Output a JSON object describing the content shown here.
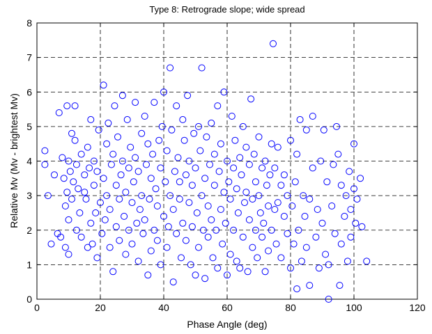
{
  "chart_data": {
    "type": "scatter",
    "title": "Type 8:  Retrograde slope; wide spread",
    "xlabel": "Phase Angle (deg)",
    "ylabel": "Relative Mv (Mv - brightest Mv)",
    "xlim": [
      0,
      120
    ],
    "ylim": [
      0,
      8
    ],
    "xticks": [
      0,
      20,
      40,
      60,
      80,
      100,
      120
    ],
    "yticks": [
      0,
      1,
      2,
      3,
      4,
      5,
      6,
      7,
      8
    ],
    "grid": true,
    "marker": "open-circle",
    "color": "#0000ff",
    "points": [
      [
        2.5,
        4.3
      ],
      [
        2.5,
        3.9
      ],
      [
        3.5,
        3.0
      ],
      [
        4.5,
        1.6
      ],
      [
        5.5,
        3.6
      ],
      [
        6.5,
        1.9
      ],
      [
        7.0,
        5.4
      ],
      [
        7.5,
        1.8
      ],
      [
        8.0,
        4.1
      ],
      [
        8.5,
        3.5
      ],
      [
        9.0,
        1.5
      ],
      [
        9.0,
        2.7
      ],
      [
        9.5,
        3.1
      ],
      [
        9.5,
        5.6
      ],
      [
        10.0,
        2.3
      ],
      [
        10.0,
        4.0
      ],
      [
        10.0,
        1.3
      ],
      [
        10.5,
        3.7
      ],
      [
        11.0,
        4.8
      ],
      [
        11.0,
        2.9
      ],
      [
        11.5,
        3.4
      ],
      [
        12.0,
        4.6
      ],
      [
        12.0,
        5.6
      ],
      [
        12.5,
        3.9
      ],
      [
        12.5,
        2.0
      ],
      [
        13.0,
        3.2
      ],
      [
        13.5,
        2.5
      ],
      [
        14.0,
        4.2
      ],
      [
        14.0,
        1.8
      ],
      [
        15.0,
        3.6
      ],
      [
        15.0,
        3.1
      ],
      [
        15.5,
        2.9
      ],
      [
        16.0,
        4.4
      ],
      [
        16.0,
        1.5
      ],
      [
        16.5,
        3.8
      ],
      [
        17.0,
        2.2
      ],
      [
        17.0,
        5.2
      ],
      [
        17.5,
        1.6
      ],
      [
        18.0,
        4.0
      ],
      [
        18.0,
        3.3
      ],
      [
        18.5,
        2.5
      ],
      [
        19.0,
        3.7
      ],
      [
        19.0,
        1.2
      ],
      [
        19.5,
        4.9
      ],
      [
        20.0,
        2.8
      ],
      [
        20.5,
        1.9
      ],
      [
        21.0,
        3.5
      ],
      [
        21.0,
        6.2
      ],
      [
        21.5,
        2.3
      ],
      [
        22.0,
        4.5
      ],
      [
        22.0,
        3.0
      ],
      [
        22.5,
        5.1
      ],
      [
        23.0,
        1.5
      ],
      [
        23.0,
        2.6
      ],
      [
        23.5,
        3.9
      ],
      [
        24.0,
        0.8
      ],
      [
        24.0,
        4.2
      ],
      [
        24.5,
        5.6
      ],
      [
        25.0,
        2.1
      ],
      [
        25.0,
        3.3
      ],
      [
        25.5,
        4.7
      ],
      [
        26.0,
        1.7
      ],
      [
        26.0,
        2.9
      ],
      [
        26.5,
        3.6
      ],
      [
        27.0,
        5.9
      ],
      [
        27.0,
        4.0
      ],
      [
        27.5,
        2.4
      ],
      [
        28.0,
        1.3
      ],
      [
        28.0,
        3.1
      ],
      [
        28.5,
        5.2
      ],
      [
        29.0,
        3.8
      ],
      [
        29.0,
        2.0
      ],
      [
        29.5,
        4.4
      ],
      [
        30.0,
        1.6
      ],
      [
        30.0,
        2.8
      ],
      [
        30.5,
        3.4
      ],
      [
        31.0,
        5.7
      ],
      [
        31.0,
        4.1
      ],
      [
        31.5,
        2.2
      ],
      [
        32.0,
        1.1
      ],
      [
        32.0,
        3.7
      ],
      [
        32.5,
        2.6
      ],
      [
        33.0,
        4.8
      ],
      [
        33.0,
        3.0
      ],
      [
        33.5,
        1.9
      ],
      [
        34.0,
        5.3
      ],
      [
        34.0,
        2.3
      ],
      [
        34.5,
        3.9
      ],
      [
        35.0,
        0.7
      ],
      [
        35.0,
        4.5
      ],
      [
        35.5,
        2.9
      ],
      [
        36.0,
        1.4
      ],
      [
        36.0,
        3.5
      ],
      [
        36.5,
        4.2
      ],
      [
        37.0,
        2.0
      ],
      [
        37.0,
        5.7
      ],
      [
        37.5,
        3.2
      ],
      [
        38.0,
        1.7
      ],
      [
        38.0,
        2.7
      ],
      [
        38.5,
        4.6
      ],
      [
        39.0,
        3.8
      ],
      [
        39.0,
        1.0
      ],
      [
        39.5,
        5.0
      ],
      [
        40.0,
        2.4
      ],
      [
        40.0,
        6.0
      ],
      [
        40.5,
        3.4
      ],
      [
        41.0,
        4.3
      ],
      [
        41.0,
        1.5
      ],
      [
        41.5,
        2.1
      ],
      [
        42.0,
        6.7
      ],
      [
        42.0,
        3.0
      ],
      [
        42.5,
        4.9
      ],
      [
        43.0,
        2.6
      ],
      [
        43.0,
        0.5
      ],
      [
        43.5,
        3.7
      ],
      [
        44.0,
        5.6
      ],
      [
        44.0,
        1.9
      ],
      [
        44.5,
        4.1
      ],
      [
        45.0,
        2.9
      ],
      [
        45.0,
        3.4
      ],
      [
        45.5,
        1.2
      ],
      [
        46.0,
        5.2
      ],
      [
        46.0,
        2.2
      ],
      [
        46.5,
        4.6
      ],
      [
        47.0,
        3.6
      ],
      [
        47.0,
        1.7
      ],
      [
        47.5,
        5.9
      ],
      [
        48.0,
        2.8
      ],
      [
        48.0,
        4.0
      ],
      [
        48.5,
        1.0
      ],
      [
        49.0,
        3.3
      ],
      [
        49.0,
        2.1
      ],
      [
        49.5,
        4.8
      ],
      [
        50.0,
        0.7
      ],
      [
        50.0,
        3.8
      ],
      [
        50.5,
        2.5
      ],
      [
        51.0,
        5.0
      ],
      [
        51.0,
        1.5
      ],
      [
        51.5,
        4.3
      ],
      [
        52.0,
        3.0
      ],
      [
        52.0,
        6.7
      ],
      [
        52.5,
        2.0
      ],
      [
        53.0,
        3.5
      ],
      [
        53.0,
        0.6
      ],
      [
        53.5,
        4.7
      ],
      [
        54.0,
        2.7
      ],
      [
        54.0,
        1.8
      ],
      [
        54.5,
        3.9
      ],
      [
        55.0,
        5.1
      ],
      [
        55.0,
        2.3
      ],
      [
        55.5,
        1.2
      ],
      [
        56.0,
        4.2
      ],
      [
        56.0,
        3.3
      ],
      [
        56.5,
        2.0
      ],
      [
        57.0,
        5.6
      ],
      [
        57.0,
        0.9
      ],
      [
        57.5,
        3.7
      ],
      [
        58.0,
        2.6
      ],
      [
        58.0,
        4.5
      ],
      [
        58.5,
        1.6
      ],
      [
        59.0,
        3.1
      ],
      [
        59.0,
        6.0
      ],
      [
        59.5,
        2.2
      ],
      [
        60.0,
        0.7
      ],
      [
        60.0,
        4.0
      ],
      [
        60.5,
        3.4
      ],
      [
        61.0,
        1.3
      ],
      [
        61.0,
        2.9
      ],
      [
        61.5,
        5.3
      ],
      [
        62.0,
        3.8
      ],
      [
        62.0,
        2.0
      ],
      [
        62.5,
        4.6
      ],
      [
        63.0,
        1.1
      ],
      [
        63.0,
        3.2
      ],
      [
        63.5,
        2.5
      ],
      [
        64.0,
        4.1
      ],
      [
        64.0,
        0.9
      ],
      [
        64.5,
        3.6
      ],
      [
        65.0,
        5.0
      ],
      [
        65.0,
        1.8
      ],
      [
        65.5,
        2.8
      ],
      [
        66.0,
        4.4
      ],
      [
        66.0,
        3.1
      ],
      [
        66.5,
        0.8
      ],
      [
        67.0,
        2.3
      ],
      [
        67.0,
        3.9
      ],
      [
        67.5,
        5.8
      ],
      [
        68.0,
        1.5
      ],
      [
        68.0,
        2.9
      ],
      [
        68.5,
        4.2
      ],
      [
        69.0,
        3.4
      ],
      [
        69.0,
        2.0
      ],
      [
        69.5,
        1.2
      ],
      [
        70.0,
        4.7
      ],
      [
        70.0,
        3.0
      ],
      [
        70.5,
        2.5
      ],
      [
        71.0,
        1.8
      ],
      [
        71.0,
        3.8
      ],
      [
        71.5,
        2.2
      ],
      [
        72.0,
        4.0
      ],
      [
        72.0,
        0.8
      ],
      [
        72.5,
        3.3
      ],
      [
        73.0,
        2.7
      ],
      [
        73.0,
        1.4
      ],
      [
        73.5,
        3.6
      ],
      [
        74.0,
        4.5
      ],
      [
        74.0,
        2.0
      ],
      [
        74.5,
        7.4
      ],
      [
        75.0,
        2.6
      ],
      [
        75.0,
        3.8
      ],
      [
        75.5,
        1.6
      ],
      [
        76.0,
        4.4
      ],
      [
        76.0,
        2.8
      ],
      [
        77.0,
        3.3
      ],
      [
        77.0,
        1.2
      ],
      [
        78.0,
        2.4
      ],
      [
        78.0,
        3.6
      ],
      [
        79.0,
        1.9
      ],
      [
        79.0,
        3.0
      ],
      [
        80.0,
        0.9
      ],
      [
        80.0,
        4.6
      ],
      [
        80.5,
        2.7
      ],
      [
        81.0,
        1.6
      ],
      [
        81.5,
        3.4
      ],
      [
        82.0,
        0.3
      ],
      [
        82.0,
        4.2
      ],
      [
        82.5,
        2.0
      ],
      [
        83.0,
        5.2
      ],
      [
        83.5,
        1.1
      ],
      [
        84.0,
        3.0
      ],
      [
        84.5,
        2.4
      ],
      [
        85.0,
        4.9
      ],
      [
        85.0,
        1.5
      ],
      [
        86.0,
        0.4
      ],
      [
        86.0,
        2.9
      ],
      [
        87.0,
        5.3
      ],
      [
        87.0,
        3.8
      ],
      [
        88.0,
        1.8
      ],
      [
        88.5,
        2.6
      ],
      [
        89.0,
        0.9
      ],
      [
        89.5,
        4.0
      ],
      [
        90.0,
        2.2
      ],
      [
        90.5,
        4.9
      ],
      [
        91.0,
        1.3
      ],
      [
        91.5,
        3.4
      ],
      [
        92.0,
        0.0
      ],
      [
        92.0,
        1.0
      ],
      [
        93.0,
        2.7
      ],
      [
        93.5,
        3.9
      ],
      [
        94.0,
        1.9
      ],
      [
        94.5,
        5.0
      ],
      [
        95.0,
        4.2
      ],
      [
        95.5,
        0.4
      ],
      [
        96.0,
        3.3
      ],
      [
        96.0,
        1.6
      ],
      [
        97.0,
        2.4
      ],
      [
        97.5,
        3.0
      ],
      [
        98.0,
        1.1
      ],
      [
        98.5,
        3.7
      ],
      [
        99.0,
        1.8
      ],
      [
        99.0,
        2.6
      ],
      [
        100.0,
        4.5
      ],
      [
        100.0,
        3.2
      ],
      [
        100.5,
        2.2
      ],
      [
        101.0,
        2.9
      ],
      [
        102.0,
        3.5
      ],
      [
        102.5,
        2.1
      ],
      [
        104.0,
        1.1
      ]
    ]
  }
}
